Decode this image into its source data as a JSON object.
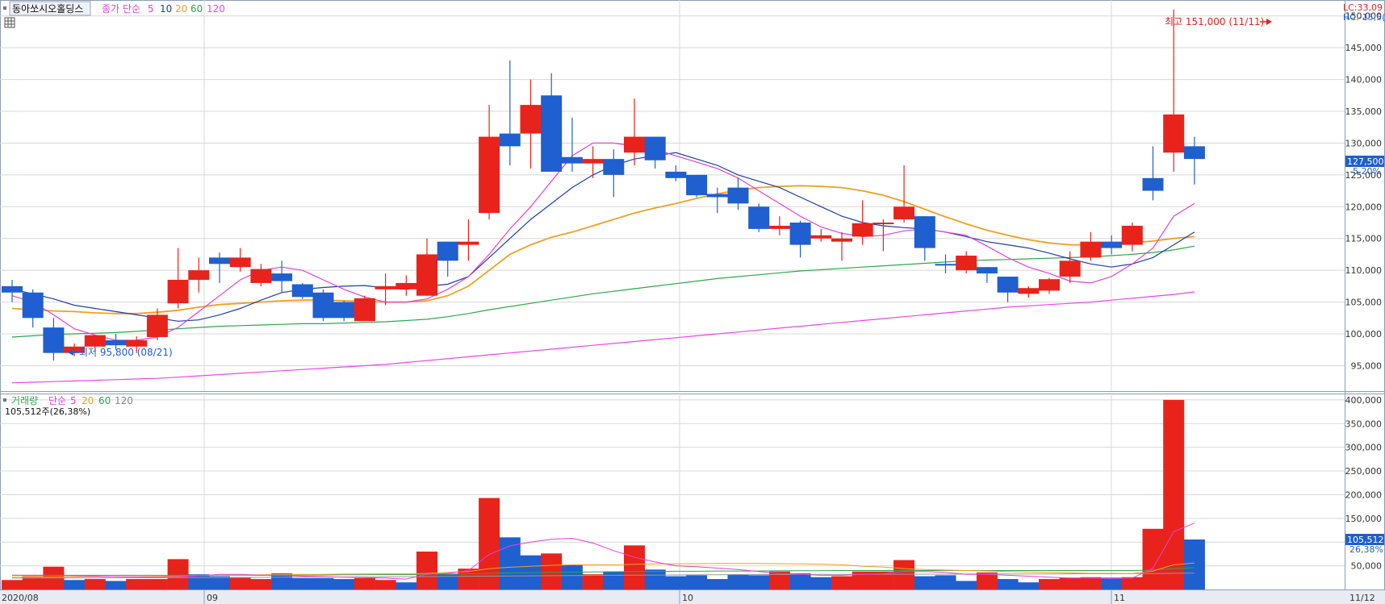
{
  "header": {
    "stock_name": "동아쏘시오홀딩스",
    "price_label": "종가",
    "ma_type": "단순",
    "ma_periods": [
      "5",
      "10",
      "20",
      "60",
      "120"
    ],
    "lc": "LC:33,09",
    "hc": "HC:-15,5("
  },
  "volume_header": {
    "label": "거래량",
    "ma_type": "단순",
    "ma_periods": [
      "5",
      "20",
      "60",
      "120"
    ],
    "current": "105,512주(26,38%)"
  },
  "annotations": {
    "high": "최고 151,000 (11/11)",
    "low": "최저 95,800 (08/21)"
  },
  "badges": {
    "price": "127,500",
    "price_change": "-5,20%",
    "volume": "105,512",
    "volume_change": "26,38%"
  },
  "x_axis": {
    "labels": [
      "2020/08",
      "09",
      "10",
      "11",
      "11/12"
    ]
  },
  "colors": {
    "up": "#e8231c",
    "down": "#1f5fcf",
    "ma5": "#e63fd6",
    "ma10": "#1b3fa8",
    "ma20": "#f0a020",
    "ma60": "#2ea84a",
    "ma120": "#ee44ee",
    "grid": "#d8d8d8",
    "border": "#9aa6b8"
  },
  "chart_data": [
    {
      "type": "candlestick",
      "title": "동아쏘시오홀딩스 종가",
      "y_ticks": [
        95000,
        100000,
        105000,
        110000,
        115000,
        120000,
        125000,
        130000,
        135000,
        140000,
        145000,
        150000
      ],
      "ylim": [
        91000,
        152500
      ],
      "candles": [
        {
          "o": 107500,
          "h": 108500,
          "c": 106500,
          "l": 105000
        },
        {
          "o": 106500,
          "h": 107000,
          "c": 102500,
          "l": 101000
        },
        {
          "o": 101000,
          "h": 102500,
          "c": 97000,
          "l": 95800
        },
        {
          "o": 97000,
          "h": 98500,
          "c": 98000,
          "l": 96500
        },
        {
          "o": 98000,
          "h": 99800,
          "c": 99800,
          "l": 97200
        },
        {
          "o": 99000,
          "h": 100000,
          "c": 98200,
          "l": 97500
        },
        {
          "o": 98000,
          "h": 99600,
          "c": 99000,
          "l": 97000
        },
        {
          "o": 99500,
          "h": 104000,
          "c": 103000,
          "l": 99000
        },
        {
          "o": 104800,
          "h": 113500,
          "c": 108500,
          "l": 104000
        },
        {
          "o": 108500,
          "h": 112000,
          "c": 110000,
          "l": 106500
        },
        {
          "o": 112000,
          "h": 112800,
          "c": 111000,
          "l": 108000
        },
        {
          "o": 110500,
          "h": 113500,
          "c": 112000,
          "l": 109800
        },
        {
          "o": 108000,
          "h": 111000,
          "c": 110200,
          "l": 107500
        },
        {
          "o": 109500,
          "h": 111500,
          "c": 108300,
          "l": 106500
        },
        {
          "o": 107800,
          "h": 108000,
          "c": 105800,
          "l": 105500
        },
        {
          "o": 106500,
          "h": 107000,
          "c": 102500,
          "l": 102000
        },
        {
          "o": 105000,
          "h": 105200,
          "c": 102500,
          "l": 102000
        },
        {
          "o": 102000,
          "h": 106000,
          "c": 105600,
          "l": 102000
        },
        {
          "o": 107000,
          "h": 109500,
          "c": 107500,
          "l": 104500
        },
        {
          "o": 107000,
          "h": 109200,
          "c": 108000,
          "l": 106000
        },
        {
          "o": 106000,
          "h": 115000,
          "c": 112500,
          "l": 106000
        },
        {
          "o": 114500,
          "h": 114500,
          "c": 111500,
          "l": 109000
        },
        {
          "o": 114000,
          "h": 118000,
          "c": 114500,
          "l": 111500
        },
        {
          "o": 119000,
          "h": 136000,
          "c": 131000,
          "l": 118000
        },
        {
          "o": 131500,
          "h": 143000,
          "c": 129500,
          "l": 126500
        },
        {
          "o": 131500,
          "h": 140000,
          "c": 136000,
          "l": 126000
        },
        {
          "o": 137500,
          "h": 141000,
          "c": 125500,
          "l": 125500
        },
        {
          "o": 127800,
          "h": 134000,
          "c": 126800,
          "l": 125500
        },
        {
          "o": 126800,
          "h": 129500,
          "c": 127500,
          "l": 124500
        },
        {
          "o": 127500,
          "h": 129000,
          "c": 125000,
          "l": 121500
        },
        {
          "o": 128500,
          "h": 137000,
          "c": 131000,
          "l": 126500
        },
        {
          "o": 131000,
          "h": 131000,
          "c": 127300,
          "l": 126000
        },
        {
          "o": 125500,
          "h": 126500,
          "c": 124500,
          "l": 124000
        },
        {
          "o": 125000,
          "h": 125000,
          "c": 121800,
          "l": 121500
        },
        {
          "o": 122000,
          "h": 123000,
          "c": 121500,
          "l": 119000
        },
        {
          "o": 123000,
          "h": 124500,
          "c": 120500,
          "l": 119500
        },
        {
          "o": 120000,
          "h": 120500,
          "c": 116500,
          "l": 116000
        },
        {
          "o": 116500,
          "h": 118500,
          "c": 117000,
          "l": 115500
        },
        {
          "o": 117500,
          "h": 117800,
          "c": 114000,
          "l": 112000
        },
        {
          "o": 115000,
          "h": 116500,
          "c": 115500,
          "l": 114500
        },
        {
          "o": 114500,
          "h": 116000,
          "c": 115000,
          "l": 111500
        },
        {
          "o": 115300,
          "h": 121000,
          "c": 117400,
          "l": 114000
        },
        {
          "o": 117400,
          "h": 118000,
          "c": 117500,
          "l": 113000
        },
        {
          "o": 118000,
          "h": 126500,
          "c": 120000,
          "l": 117500
        },
        {
          "o": 118500,
          "h": 118500,
          "c": 113500,
          "l": 111500
        },
        {
          "o": 111000,
          "h": 112500,
          "c": 110800,
          "l": 109500
        },
        {
          "o": 110000,
          "h": 113000,
          "c": 112300,
          "l": 109500
        },
        {
          "o": 110500,
          "h": 110500,
          "c": 109500,
          "l": 108000
        },
        {
          "o": 109000,
          "h": 109000,
          "c": 106500,
          "l": 105000
        },
        {
          "o": 106300,
          "h": 107500,
          "c": 107200,
          "l": 105700
        },
        {
          "o": 106800,
          "h": 108800,
          "c": 108600,
          "l": 106300
        },
        {
          "o": 109000,
          "h": 113000,
          "c": 111500,
          "l": 108000
        },
        {
          "o": 112000,
          "h": 116000,
          "c": 114500,
          "l": 111500
        },
        {
          "o": 114500,
          "h": 115500,
          "c": 113500,
          "l": 112500
        },
        {
          "o": 114000,
          "h": 117500,
          "c": 117000,
          "l": 113000
        },
        {
          "o": 124500,
          "h": 129500,
          "c": 122500,
          "l": 121000
        },
        {
          "o": 128500,
          "h": 151000,
          "c": 134500,
          "l": 125500
        },
        {
          "o": 129500,
          "h": 131000,
          "c": 127500,
          "l": 123500
        }
      ],
      "moving_averages": {
        "ma5": [
          106000,
          105000,
          103000,
          100800,
          99800,
          99000,
          99000,
          99500,
          101000,
          103500,
          106000,
          108500,
          110000,
          110500,
          110000,
          108500,
          107000,
          105800,
          105000,
          105000,
          105500,
          107000,
          109000,
          112500,
          116500,
          120000,
          124000,
          128000,
          130000,
          130000,
          129500,
          129000,
          128000,
          127000,
          126000,
          124500,
          122500,
          120500,
          118500,
          116800,
          115800,
          115300,
          115500,
          116200,
          116500,
          116000,
          115500,
          113800,
          112000,
          110500,
          109500,
          108300,
          108000,
          109000,
          111000,
          113500,
          118500,
          120500
        ],
        "ma10": [
          107000,
          106300,
          105500,
          104500,
          104000,
          103500,
          103000,
          102500,
          102000,
          102200,
          103000,
          104000,
          105300,
          106500,
          107000,
          107300,
          107500,
          107600,
          107200,
          107000,
          107500,
          107800,
          109000,
          112000,
          115000,
          118000,
          120500,
          123000,
          125000,
          126500,
          127500,
          128000,
          128500,
          127500,
          126500,
          125000,
          124000,
          123000,
          121500,
          120000,
          118500,
          117500,
          117000,
          116700,
          116500,
          116000,
          115300,
          114500,
          114000,
          113500,
          112700,
          111800,
          111000,
          110500,
          111000,
          112000,
          114000,
          116000
        ],
        "ma20": [
          104000,
          103800,
          103600,
          103500,
          103300,
          103200,
          103200,
          103400,
          103700,
          104200,
          104600,
          104800,
          105000,
          105200,
          105300,
          105300,
          105200,
          105100,
          105000,
          105000,
          105200,
          106000,
          107500,
          110000,
          112500,
          114000,
          115200,
          116000,
          117000,
          118000,
          119000,
          119800,
          120500,
          121300,
          122000,
          122600,
          123000,
          123200,
          123300,
          123200,
          123000,
          122500,
          121800,
          120800,
          119600,
          118400,
          117300,
          116300,
          115500,
          114800,
          114300,
          114000,
          114000,
          114100,
          114300,
          114600,
          115000,
          115300
        ],
        "ma60": [
          99500,
          99700,
          99900,
          100000,
          100100,
          100200,
          100400,
          100600,
          100800,
          101000,
          101200,
          101300,
          101400,
          101500,
          101600,
          101600,
          101700,
          101800,
          101900,
          102100,
          102300,
          102700,
          103200,
          103800,
          104300,
          104800,
          105300,
          105800,
          106300,
          106700,
          107100,
          107500,
          107900,
          108300,
          108700,
          109000,
          109300,
          109600,
          109900,
          110100,
          110300,
          110500,
          110700,
          110900,
          111100,
          111300,
          111500,
          111600,
          111700,
          111800,
          111900,
          112000,
          112100,
          112300,
          112500,
          112800,
          113200,
          113800
        ],
        "ma120": [
          92300,
          92400,
          92500,
          92600,
          92700,
          92800,
          92900,
          93000,
          93200,
          93400,
          93600,
          93800,
          94000,
          94200,
          94400,
          94600,
          94800,
          95000,
          95200,
          95500,
          95800,
          96100,
          96400,
          96700,
          97000,
          97300,
          97600,
          97900,
          98200,
          98500,
          98800,
          99100,
          99400,
          99700,
          100000,
          100300,
          100600,
          100900,
          101200,
          101500,
          101800,
          102100,
          102400,
          102700,
          103000,
          103300,
          103600,
          103900,
          104200,
          104400,
          104600,
          104800,
          105000,
          105300,
          105600,
          105900,
          106200,
          106600
        ]
      }
    },
    {
      "type": "bar",
      "title": "거래량",
      "y_ticks": [
        50000,
        100000,
        150000,
        200000,
        250000,
        300000,
        350000,
        400000
      ],
      "ylim": [
        0,
        410000
      ],
      "values": [
        20000,
        28000,
        48000,
        20000,
        22000,
        18000,
        22000,
        22000,
        64000,
        32000,
        28000,
        26000,
        22000,
        34000,
        24000,
        24000,
        22000,
        24000,
        20000,
        15000,
        80000,
        32000,
        44000,
        193000,
        110000,
        72000,
        76000,
        52000,
        32000,
        38000,
        93000,
        42000,
        28000,
        30000,
        22000,
        32000,
        30000,
        38000,
        34000,
        26000,
        28000,
        38000,
        38000,
        62000,
        28000,
        30000,
        18000,
        36000,
        22000,
        15000,
        22000,
        25000,
        26000,
        25000,
        26000,
        128000,
        400000,
        105512
      ],
      "up": [
        true,
        true,
        true,
        false,
        true,
        false,
        true,
        true,
        true,
        false,
        false,
        true,
        true,
        false,
        false,
        false,
        false,
        true,
        true,
        false,
        true,
        false,
        true,
        true,
        false,
        false,
        true,
        false,
        true,
        false,
        true,
        false,
        false,
        false,
        false,
        false,
        false,
        true,
        false,
        false,
        true,
        true,
        true,
        true,
        false,
        false,
        false,
        true,
        false,
        false,
        true,
        true,
        true,
        false,
        true,
        true,
        true,
        false
      ],
      "ma5": [
        30000,
        30000,
        30000,
        29000,
        28000,
        27000,
        26500,
        26000,
        27000,
        29000,
        32000,
        32000,
        30000,
        30000,
        28000,
        27000,
        26000,
        25000,
        24000,
        22000,
        32000,
        34000,
        40000,
        74000,
        92000,
        100000,
        106000,
        108000,
        98000,
        82000,
        68000,
        58000,
        50000,
        48000,
        45000,
        42000,
        38000,
        34000,
        32000,
        30000,
        30000,
        32000,
        33000,
        38000,
        38000,
        36000,
        32000,
        32000,
        30000,
        28000,
        26000,
        24000,
        24000,
        23000,
        24000,
        45000,
        122000,
        140000
      ],
      "ma20": [
        26000,
        26000,
        26500,
        26500,
        27000,
        27000,
        27000,
        27500,
        28000,
        29000,
        30000,
        30500,
        31000,
        31500,
        32000,
        32000,
        32500,
        33000,
        33000,
        33000,
        34000,
        36000,
        38000,
        44000,
        47000,
        49000,
        51000,
        52000,
        52000,
        52000,
        53000,
        54000,
        54000,
        54500,
        55000,
        55000,
        55000,
        54500,
        54000,
        53500,
        52000,
        49000,
        47500,
        44000,
        42000,
        41000,
        40000,
        39000,
        38000,
        37000,
        36000,
        35000,
        34000,
        34000,
        33500,
        39000,
        52000,
        56000
      ],
      "ma60": [
        30000,
        30000,
        30000,
        30000,
        30000,
        30000,
        30000,
        30000,
        30000,
        30000,
        30000,
        30000,
        30000,
        30000,
        30500,
        30500,
        31000,
        31000,
        31500,
        31500,
        32000,
        32500,
        33000,
        34000,
        35000,
        35500,
        36000,
        36500,
        37000,
        37500,
        38000,
        38000,
        38500,
        38500,
        39000,
        39000,
        39000,
        39500,
        39500,
        39500,
        40000,
        40000,
        40000,
        40000,
        40000,
        40000,
        40000,
        40000,
        40000,
        40000,
        40000,
        40000,
        40000,
        40000,
        40000,
        41000,
        44000,
        46000
      ],
      "ma120": [
        24000,
        24100,
        24200,
        24300,
        24400,
        24500,
        24600,
        24700,
        24800,
        25000,
        25200,
        25400,
        25600,
        25800,
        26000,
        26200,
        26400,
        26600,
        26800,
        27000,
        27300,
        27600,
        27900,
        28200,
        28500,
        28800,
        29100,
        29400,
        29700,
        30000,
        30300,
        30500,
        30700,
        30900,
        31100,
        31300,
        31500,
        31600,
        31700,
        31800,
        31900,
        32000,
        32100,
        32200,
        32300,
        32400,
        32500,
        32600,
        32700,
        32800,
        32900,
        33000,
        33100,
        33200,
        33300,
        33600,
        34200,
        34600
      ]
    }
  ]
}
